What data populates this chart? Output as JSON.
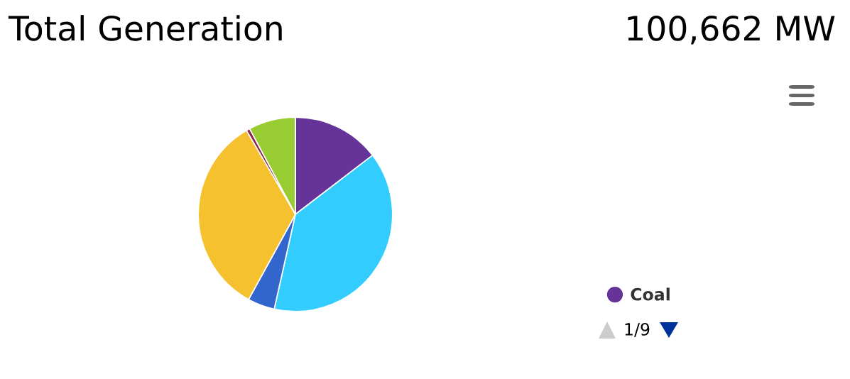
{
  "chart_data": {
    "type": "pie",
    "title": "Total Generation",
    "subtitle": "100,662 MW",
    "categories": [
      "Coal",
      null,
      null,
      null,
      null,
      null
    ],
    "values": [
      14.6,
      38.9,
      4.5,
      33.6,
      0.6,
      7.8
    ],
    "colors": [
      "#663399",
      "#33ccff",
      "#3366cc",
      "#f5c12e",
      "#8b2252",
      "#99cc33"
    ],
    "legend": "bottom right",
    "annotations": [
      "1/9"
    ]
  }
}
